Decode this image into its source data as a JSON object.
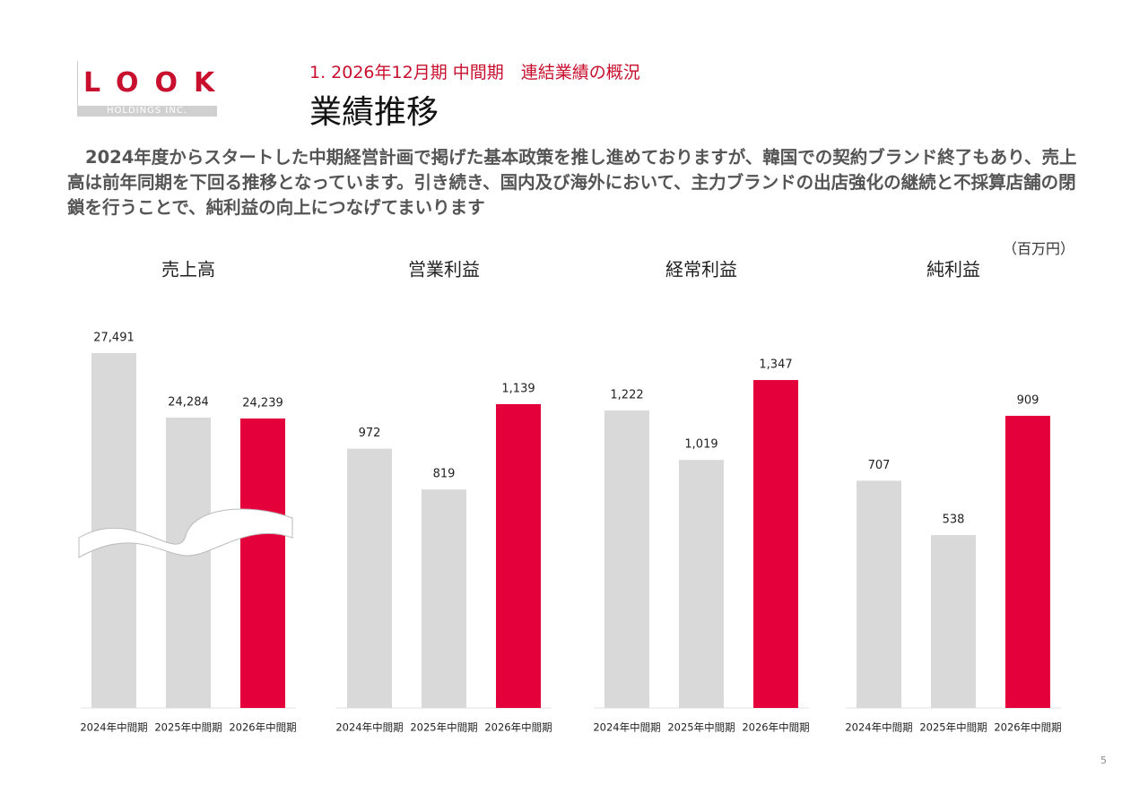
{
  "header": {
    "logo": "LOOK",
    "logo_sub": "HOLDINGS INC.",
    "section": "1. 2026年12月期 中間期　連結業績の概況",
    "title": "業績推移"
  },
  "body": "2024年度からスタートした中期経営計画で掲げた基本政策を推し進めておりますが、韓国での契約ブランド終了もあり、売上高は前年同期を下回る推移となっています。引き続き、国内及び海外において、主力ブランドの出店強化の継続と不採算店舗の閉鎖を行うことで、純利益の向上につなげてまいります",
  "unit": "（百万円）",
  "page_number": "5",
  "chart_data": [
    {
      "type": "bar",
      "title": "売上高",
      "categories": [
        "2024年中間期",
        "2025年中間期",
        "2026年中間期"
      ],
      "values": [
        27491,
        24284,
        24239
      ],
      "value_labels": [
        "27,491",
        "24,284",
        "24,239"
      ],
      "colors": [
        "#d9d9d9",
        "#d9d9d9",
        "#e4003a"
      ],
      "ylim": [
        9850,
        28560
      ],
      "axis_break": true
    },
    {
      "type": "bar",
      "title": "営業利益",
      "categories": [
        "2024年中間期",
        "2025年中間期",
        "2026年中間期"
      ],
      "values": [
        972,
        819,
        1139
      ],
      "value_labels": [
        "972",
        "819",
        "1,139"
      ],
      "colors": [
        "#d9d9d9",
        "#d9d9d9",
        "#e4003a"
      ],
      "ylim": [
        0,
        1411
      ]
    },
    {
      "type": "bar",
      "title": "経常利益",
      "categories": [
        "2024年中間期",
        "2025年中間期",
        "2026年中間期"
      ],
      "values": [
        1222,
        1019,
        1347
      ],
      "value_labels": [
        "1,222",
        "1,019",
        "1,347"
      ],
      "colors": [
        "#d9d9d9",
        "#d9d9d9",
        "#e4003a"
      ],
      "ylim": [
        0,
        1546
      ]
    },
    {
      "type": "bar",
      "title": "純利益",
      "categories": [
        "2024年中間期",
        "2025年中間期",
        "2026年中間期"
      ],
      "values": [
        707,
        538,
        909
      ],
      "value_labels": [
        "707",
        "538",
        "909"
      ],
      "colors": [
        "#d9d9d9",
        "#d9d9d9",
        "#e4003a"
      ],
      "ylim": [
        0,
        1171
      ]
    }
  ]
}
